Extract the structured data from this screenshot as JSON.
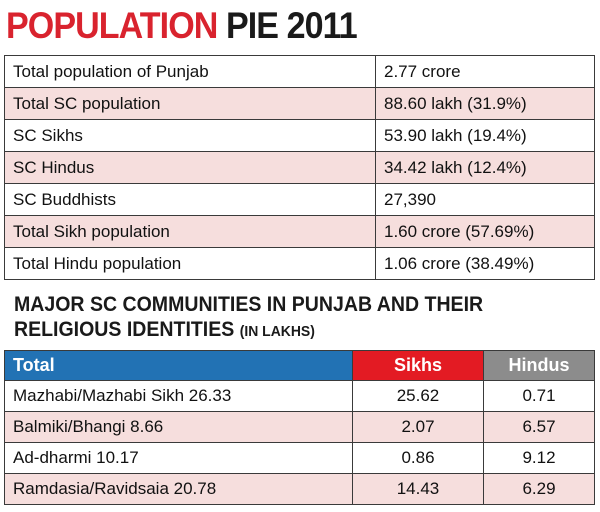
{
  "title": {
    "part1": "POPULATION",
    "part2": "PIE 2011"
  },
  "population": [
    {
      "label": "Total population of Punjab",
      "value": "2.77 crore"
    },
    {
      "label": "Total SC population",
      "value": "88.60 lakh (31.9%)"
    },
    {
      "label": "SC Sikhs",
      "value": "53.90 lakh (19.4%)"
    },
    {
      "label": "SC Hindus",
      "value": "34.42 lakh (12.4%)"
    },
    {
      "label": "SC Buddhists",
      "value": "27,390"
    },
    {
      "label": "Total Sikh population",
      "value": "1.60 crore (57.69%)"
    },
    {
      "label": "Total Hindu population",
      "value": "1.06 crore (38.49%)"
    }
  ],
  "subheading": {
    "line1": "MAJOR SC COMMUNITIES IN PUNJAB AND THEIR",
    "line2": "RELIGIOUS IDENTITIES",
    "unit": "(IN LAKHS)"
  },
  "communities": {
    "headers": {
      "total": "Total",
      "sikhs": "Sikhs",
      "hindus": "Hindus"
    },
    "rows": [
      {
        "name": "Mazhabi/Mazhabi Sikh 26.33",
        "sikhs": "25.62",
        "hindus": "0.71"
      },
      {
        "name": "Balmiki/Bhangi 8.66",
        "sikhs": "2.07",
        "hindus": "6.57"
      },
      {
        "name": "Ad-dharmi 10.17",
        "sikhs": "0.86",
        "hindus": "9.12"
      },
      {
        "name": "Ramdasia/Ravidsaia 20.78",
        "sikhs": "14.43",
        "hindus": "6.29"
      }
    ]
  },
  "colors": {
    "red": "#d9232e",
    "blue": "#2272b4",
    "grey": "#8c8c8c",
    "shade": "#f6dedd"
  }
}
